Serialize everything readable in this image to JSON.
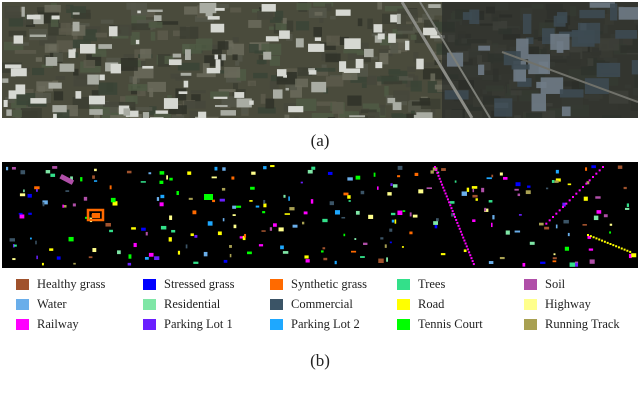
{
  "captions": {
    "a": "(a)",
    "b": "(b)"
  },
  "legend": [
    {
      "label": "Healthy grass",
      "color": "#a0522d"
    },
    {
      "label": "Stressed grass",
      "color": "#0000ff"
    },
    {
      "label": "Synthetic grass",
      "color": "#ff6a00"
    },
    {
      "label": "Trees",
      "color": "#33e08a"
    },
    {
      "label": "Soil",
      "color": "#b04fa8"
    },
    {
      "label": "Water",
      "color": "#6aaeea"
    },
    {
      "label": "Residential",
      "color": "#7fe6a6"
    },
    {
      "label": "Commercial",
      "color": "#3b5466"
    },
    {
      "label": "Road",
      "color": "#ffff00"
    },
    {
      "label": "Highway",
      "color": "#ffff8c"
    },
    {
      "label": "Railway",
      "color": "#ff00ff"
    },
    {
      "label": "Parking Lot 1",
      "color": "#6a1fff"
    },
    {
      "label": "Parking Lot 2",
      "color": "#1ea8ff"
    },
    {
      "label": "Tennis Court",
      "color": "#00ff00"
    },
    {
      "label": "Running Track",
      "color": "#a8a052"
    }
  ]
}
